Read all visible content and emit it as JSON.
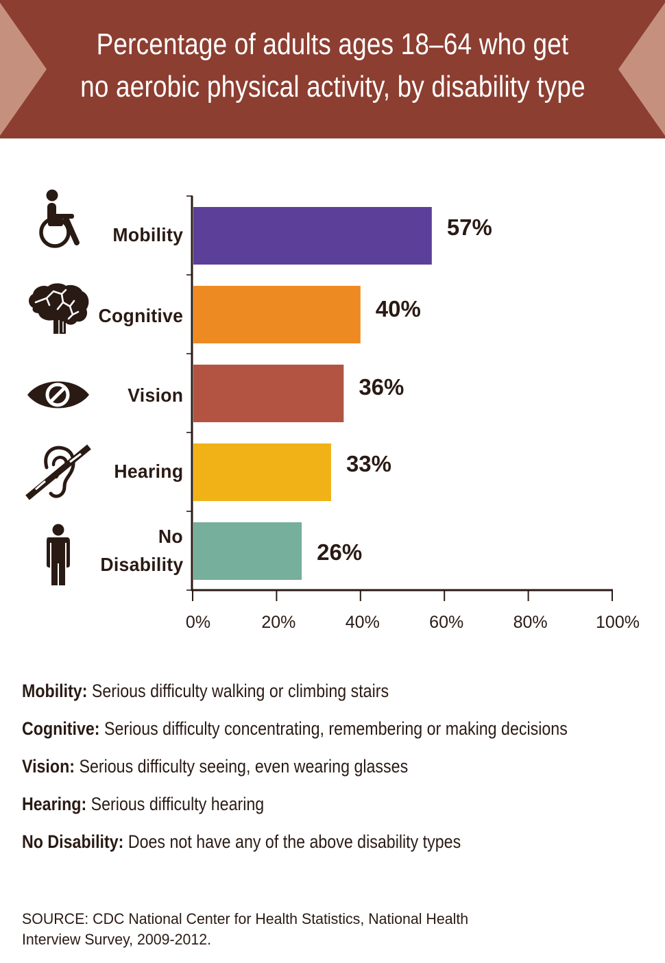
{
  "header": {
    "title_line_1": "Percentage of adults ages 18–64 who get",
    "title_line_2": "no aerobic physical activity, by disability type",
    "banner_color": "#8c3e31",
    "notch_color": "#c6907f"
  },
  "chart_data": {
    "type": "bar",
    "orientation": "horizontal",
    "title": "Percentage of adults ages 18–64 who get no aerobic physical activity, by disability type",
    "xlabel": "",
    "ylabel": "",
    "xlim": [
      0,
      100
    ],
    "grid": false,
    "categories": [
      "Mobility",
      "Cognitive",
      "Vision",
      "Hearing",
      "No Disability"
    ],
    "category_lines": [
      [
        "Mobility"
      ],
      [
        "Cognitive"
      ],
      [
        "Vision"
      ],
      [
        "Hearing"
      ],
      [
        "No",
        "Disability"
      ]
    ],
    "icons": [
      "wheelchair-icon",
      "brain-icon",
      "eye-slash-icon",
      "ear-slash-icon",
      "person-icon"
    ],
    "values": [
      57,
      40,
      36,
      33,
      26
    ],
    "value_labels": [
      "57%",
      "40%",
      "36%",
      "33%",
      "26%"
    ],
    "colors": [
      "#5b3f98",
      "#ee8a22",
      "#b35443",
      "#f1b217",
      "#76af9b"
    ],
    "x_ticks": [
      0,
      20,
      40,
      60,
      80,
      100
    ],
    "x_tick_labels": [
      "0%",
      "20%",
      "40%",
      "60%",
      "80%",
      "100%"
    ]
  },
  "definitions": [
    {
      "term": "Mobility:",
      "text": "Serious difficulty walking or climbing stairs"
    },
    {
      "term": "Cognitive:",
      "text": "Serious difficulty concentrating, remembering or making decisions"
    },
    {
      "term": "Vision:",
      "text": "Serious difficulty seeing, even wearing glasses"
    },
    {
      "term": "Hearing:",
      "text": "Serious difficulty hearing"
    },
    {
      "term": "No Disability:",
      "text": "Does not have any of the above disability types"
    }
  ],
  "source": {
    "line_1": "SOURCE: CDC National Center for Health Statistics, National Health",
    "line_2": "Interview Survey, 2009-2012."
  }
}
